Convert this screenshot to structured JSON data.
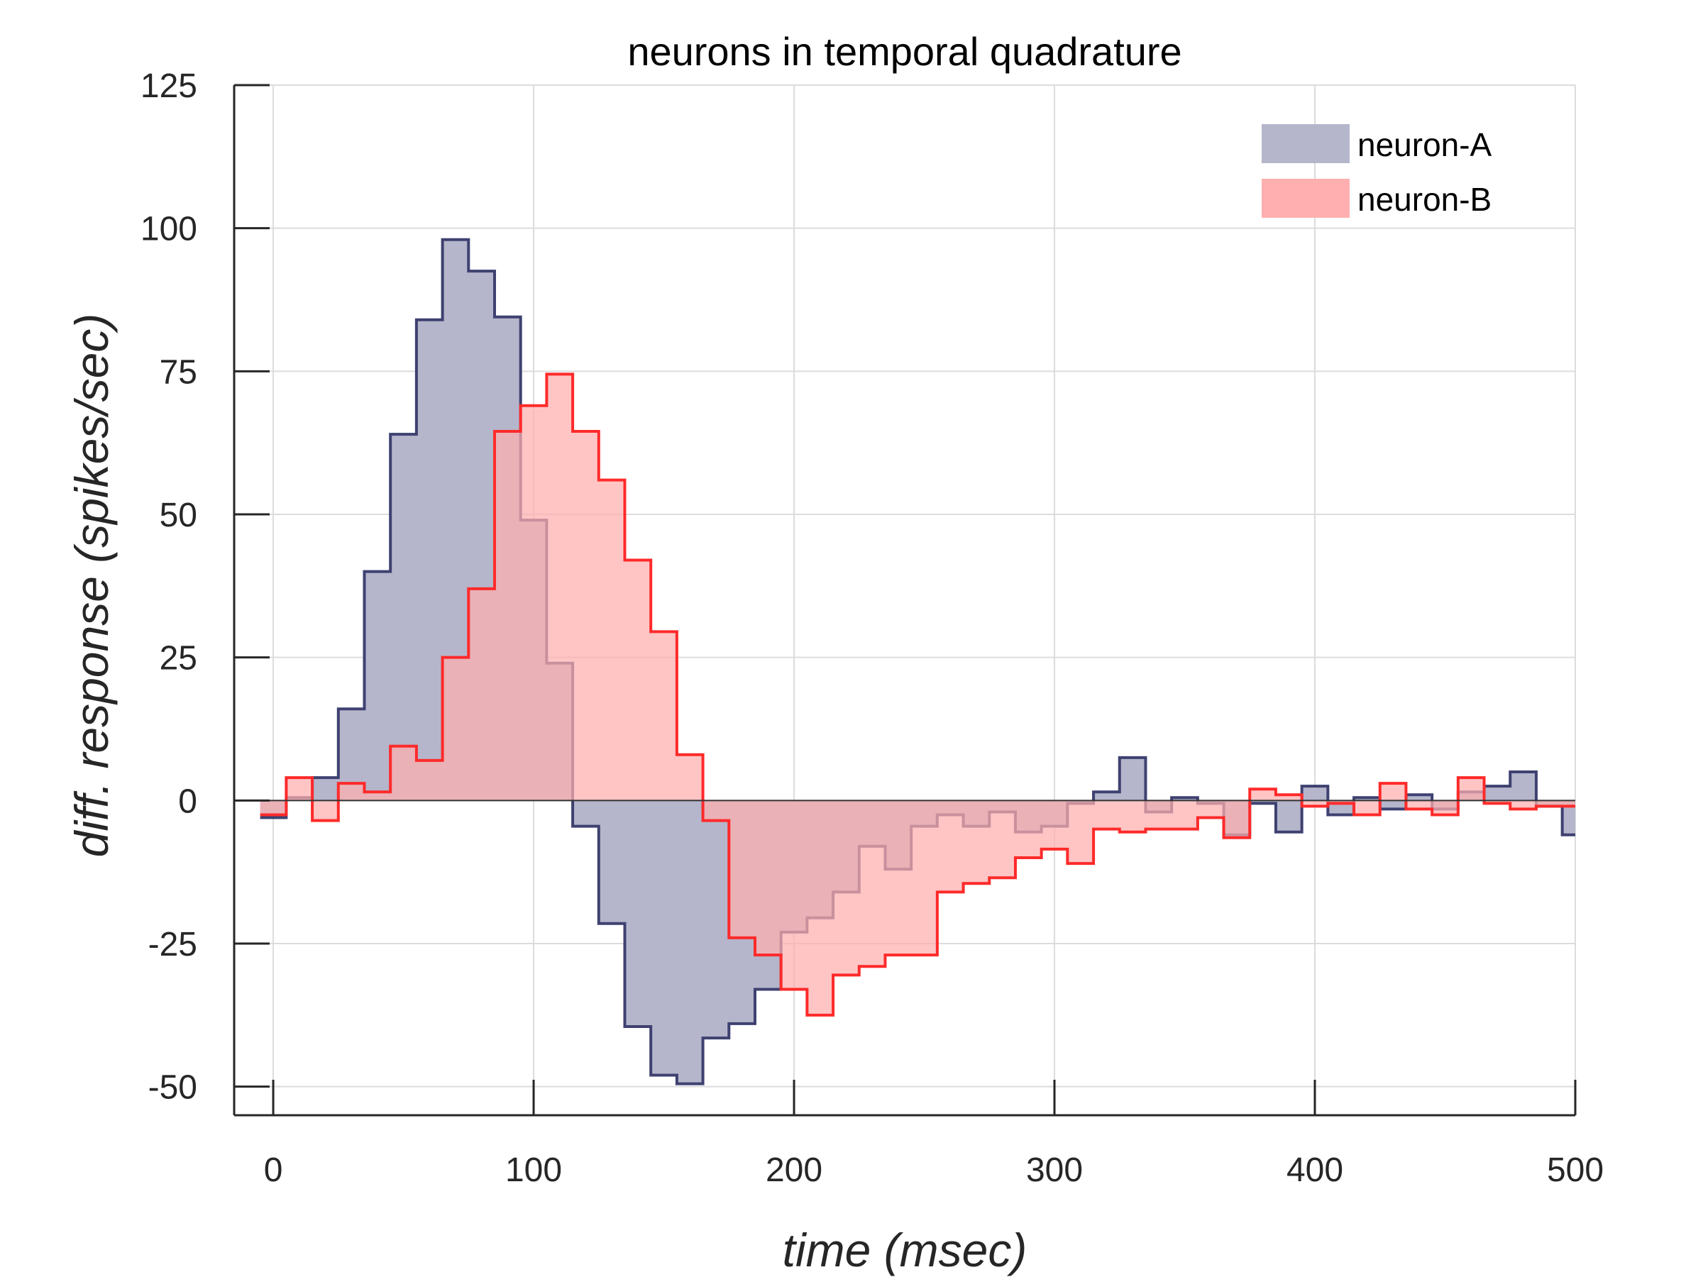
{
  "chart_data": {
    "type": "area",
    "title": "neurons in temporal quadrature",
    "xlabel": "time (msec)",
    "ylabel": "diff. response (spikes/sec)",
    "xlim": [
      -15,
      500
    ],
    "ylim": [
      -55,
      125
    ],
    "xticks": [
      0,
      100,
      200,
      300,
      400,
      500
    ],
    "yticks": [
      -50,
      -25,
      0,
      25,
      50,
      75,
      100,
      125
    ],
    "ytick_labels": [
      "-50",
      "-25",
      "0",
      "25",
      "50",
      "75",
      "100",
      "125"
    ],
    "grid": true,
    "legend_position": "top-right",
    "bin_edges": [
      -5,
      5,
      15,
      25,
      35,
      45,
      55,
      65,
      75,
      85,
      95,
      105,
      115,
      125,
      135,
      145,
      155,
      165,
      175,
      185,
      195,
      205,
      215,
      225,
      235,
      245,
      255,
      265,
      275,
      285,
      295,
      305,
      315,
      325,
      335,
      345,
      355,
      365,
      375,
      385,
      395,
      405,
      415,
      425,
      435,
      445,
      455,
      465,
      475,
      485,
      495,
      500
    ],
    "series": [
      {
        "name": "neuron-A",
        "fill_color": "#b5b6cb",
        "line_color": "#3e4170",
        "values": [
          -3,
          0.5,
          4,
          16,
          40,
          64,
          84,
          98,
          92.5,
          84.5,
          49,
          24,
          -4.5,
          -21.5,
          -39.5,
          -48,
          -49.5,
          -41.5,
          -39,
          -33,
          -23,
          -20.5,
          -16,
          -8,
          -12,
          -4.5,
          -2.5,
          -4.5,
          -2,
          -5.5,
          -4.5,
          -0.5,
          1.5,
          7.5,
          -2,
          0.5,
          -0.5,
          -6,
          -0.5,
          -5.5,
          2.5,
          -2.5,
          0.5,
          -1.5,
          1,
          -1.5,
          1.5,
          2.5,
          5,
          -1,
          -6
        ]
      },
      {
        "name": "neuron-B",
        "fill_color": "#ffafaf",
        "line_color": "#ff2a2a",
        "values": [
          -2.5,
          4,
          -3.5,
          3,
          1.5,
          9.5,
          7,
          25,
          37,
          64.5,
          69,
          74.5,
          64.5,
          56,
          42,
          29.5,
          8,
          -3.5,
          -24,
          -27,
          -33,
          -37.5,
          -30.5,
          -29,
          -27,
          -27,
          -16,
          -14.5,
          -13.5,
          -10,
          -8.5,
          -11,
          -5,
          -5.5,
          -5,
          -5,
          -3,
          -6.5,
          2,
          1,
          -1,
          -0.5,
          -2.5,
          3,
          -1.5,
          -2.5,
          4,
          -0.5,
          -1.5,
          -1,
          -1
        ]
      }
    ]
  }
}
